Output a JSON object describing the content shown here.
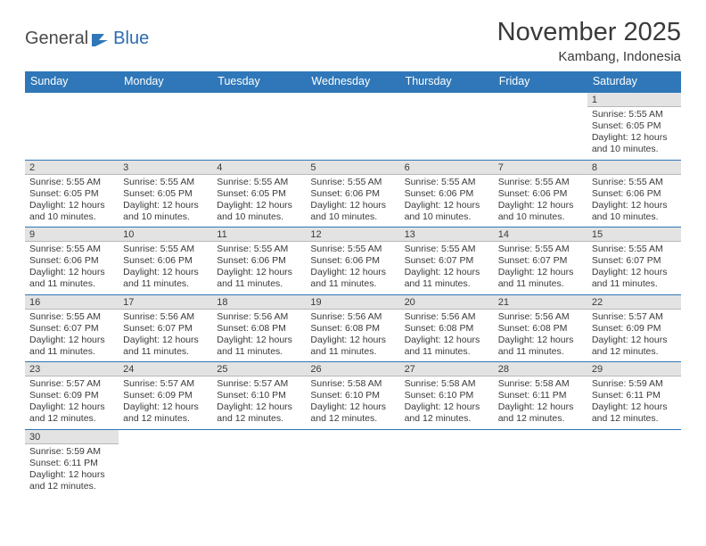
{
  "logo": {
    "text1": "General",
    "text2": "Blue"
  },
  "title": "November 2025",
  "subtitle": "Kambang, Indonesia",
  "dayHeaders": [
    "Sunday",
    "Monday",
    "Tuesday",
    "Wednesday",
    "Thursday",
    "Friday",
    "Saturday"
  ],
  "colors": {
    "headerBg": "#2f77b8",
    "headerText": "#ffffff",
    "dayNumBg": "#e3e3e3",
    "cellBorder": "#2f77b8",
    "text": "#3a3a3a"
  },
  "weeks": [
    [
      null,
      null,
      null,
      null,
      null,
      null,
      {
        "n": "1",
        "sunrise": "Sunrise: 5:55 AM",
        "sunset": "Sunset: 6:05 PM",
        "daylight": "Daylight: 12 hours and 10 minutes."
      }
    ],
    [
      {
        "n": "2",
        "sunrise": "Sunrise: 5:55 AM",
        "sunset": "Sunset: 6:05 PM",
        "daylight": "Daylight: 12 hours and 10 minutes."
      },
      {
        "n": "3",
        "sunrise": "Sunrise: 5:55 AM",
        "sunset": "Sunset: 6:05 PM",
        "daylight": "Daylight: 12 hours and 10 minutes."
      },
      {
        "n": "4",
        "sunrise": "Sunrise: 5:55 AM",
        "sunset": "Sunset: 6:05 PM",
        "daylight": "Daylight: 12 hours and 10 minutes."
      },
      {
        "n": "5",
        "sunrise": "Sunrise: 5:55 AM",
        "sunset": "Sunset: 6:06 PM",
        "daylight": "Daylight: 12 hours and 10 minutes."
      },
      {
        "n": "6",
        "sunrise": "Sunrise: 5:55 AM",
        "sunset": "Sunset: 6:06 PM",
        "daylight": "Daylight: 12 hours and 10 minutes."
      },
      {
        "n": "7",
        "sunrise": "Sunrise: 5:55 AM",
        "sunset": "Sunset: 6:06 PM",
        "daylight": "Daylight: 12 hours and 10 minutes."
      },
      {
        "n": "8",
        "sunrise": "Sunrise: 5:55 AM",
        "sunset": "Sunset: 6:06 PM",
        "daylight": "Daylight: 12 hours and 10 minutes."
      }
    ],
    [
      {
        "n": "9",
        "sunrise": "Sunrise: 5:55 AM",
        "sunset": "Sunset: 6:06 PM",
        "daylight": "Daylight: 12 hours and 11 minutes."
      },
      {
        "n": "10",
        "sunrise": "Sunrise: 5:55 AM",
        "sunset": "Sunset: 6:06 PM",
        "daylight": "Daylight: 12 hours and 11 minutes."
      },
      {
        "n": "11",
        "sunrise": "Sunrise: 5:55 AM",
        "sunset": "Sunset: 6:06 PM",
        "daylight": "Daylight: 12 hours and 11 minutes."
      },
      {
        "n": "12",
        "sunrise": "Sunrise: 5:55 AM",
        "sunset": "Sunset: 6:06 PM",
        "daylight": "Daylight: 12 hours and 11 minutes."
      },
      {
        "n": "13",
        "sunrise": "Sunrise: 5:55 AM",
        "sunset": "Sunset: 6:07 PM",
        "daylight": "Daylight: 12 hours and 11 minutes."
      },
      {
        "n": "14",
        "sunrise": "Sunrise: 5:55 AM",
        "sunset": "Sunset: 6:07 PM",
        "daylight": "Daylight: 12 hours and 11 minutes."
      },
      {
        "n": "15",
        "sunrise": "Sunrise: 5:55 AM",
        "sunset": "Sunset: 6:07 PM",
        "daylight": "Daylight: 12 hours and 11 minutes."
      }
    ],
    [
      {
        "n": "16",
        "sunrise": "Sunrise: 5:55 AM",
        "sunset": "Sunset: 6:07 PM",
        "daylight": "Daylight: 12 hours and 11 minutes."
      },
      {
        "n": "17",
        "sunrise": "Sunrise: 5:56 AM",
        "sunset": "Sunset: 6:07 PM",
        "daylight": "Daylight: 12 hours and 11 minutes."
      },
      {
        "n": "18",
        "sunrise": "Sunrise: 5:56 AM",
        "sunset": "Sunset: 6:08 PM",
        "daylight": "Daylight: 12 hours and 11 minutes."
      },
      {
        "n": "19",
        "sunrise": "Sunrise: 5:56 AM",
        "sunset": "Sunset: 6:08 PM",
        "daylight": "Daylight: 12 hours and 11 minutes."
      },
      {
        "n": "20",
        "sunrise": "Sunrise: 5:56 AM",
        "sunset": "Sunset: 6:08 PM",
        "daylight": "Daylight: 12 hours and 11 minutes."
      },
      {
        "n": "21",
        "sunrise": "Sunrise: 5:56 AM",
        "sunset": "Sunset: 6:08 PM",
        "daylight": "Daylight: 12 hours and 11 minutes."
      },
      {
        "n": "22",
        "sunrise": "Sunrise: 5:57 AM",
        "sunset": "Sunset: 6:09 PM",
        "daylight": "Daylight: 12 hours and 12 minutes."
      }
    ],
    [
      {
        "n": "23",
        "sunrise": "Sunrise: 5:57 AM",
        "sunset": "Sunset: 6:09 PM",
        "daylight": "Daylight: 12 hours and 12 minutes."
      },
      {
        "n": "24",
        "sunrise": "Sunrise: 5:57 AM",
        "sunset": "Sunset: 6:09 PM",
        "daylight": "Daylight: 12 hours and 12 minutes."
      },
      {
        "n": "25",
        "sunrise": "Sunrise: 5:57 AM",
        "sunset": "Sunset: 6:10 PM",
        "daylight": "Daylight: 12 hours and 12 minutes."
      },
      {
        "n": "26",
        "sunrise": "Sunrise: 5:58 AM",
        "sunset": "Sunset: 6:10 PM",
        "daylight": "Daylight: 12 hours and 12 minutes."
      },
      {
        "n": "27",
        "sunrise": "Sunrise: 5:58 AM",
        "sunset": "Sunset: 6:10 PM",
        "daylight": "Daylight: 12 hours and 12 minutes."
      },
      {
        "n": "28",
        "sunrise": "Sunrise: 5:58 AM",
        "sunset": "Sunset: 6:11 PM",
        "daylight": "Daylight: 12 hours and 12 minutes."
      },
      {
        "n": "29",
        "sunrise": "Sunrise: 5:59 AM",
        "sunset": "Sunset: 6:11 PM",
        "daylight": "Daylight: 12 hours and 12 minutes."
      }
    ],
    [
      {
        "n": "30",
        "sunrise": "Sunrise: 5:59 AM",
        "sunset": "Sunset: 6:11 PM",
        "daylight": "Daylight: 12 hours and 12 minutes."
      },
      null,
      null,
      null,
      null,
      null,
      null
    ]
  ]
}
